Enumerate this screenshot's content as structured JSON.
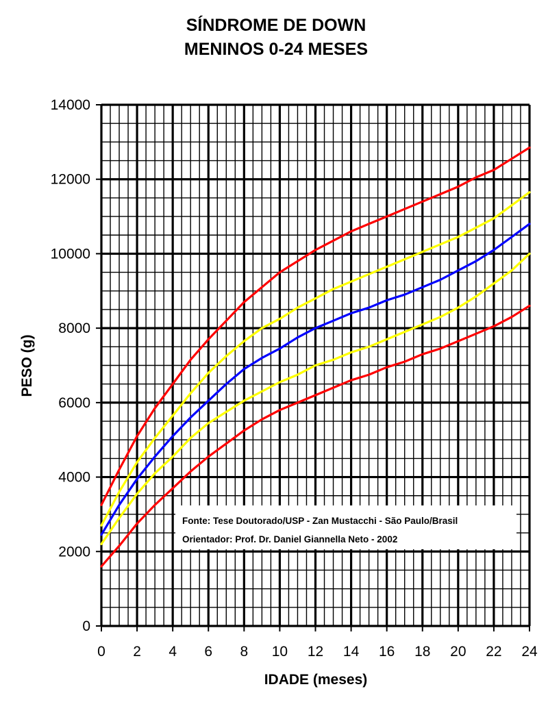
{
  "chart_data": {
    "type": "line",
    "title": "SÍNDROME DE DOWN",
    "subtitle": "MENINOS 0-24 MESES",
    "xlabel": "IDADE (meses)",
    "ylabel": "PESO (g)",
    "xlim": [
      0,
      24
    ],
    "ylim": [
      0,
      14000
    ],
    "x_ticks": [
      "0",
      "2",
      "4",
      "6",
      "8",
      "10",
      "12",
      "14",
      "16",
      "18",
      "20",
      "22",
      "24"
    ],
    "y_ticks": [
      "0",
      "2000",
      "4000",
      "6000",
      "8000",
      "10000",
      "12000",
      "14000"
    ],
    "grid": true,
    "x": [
      0,
      1,
      2,
      3,
      4,
      5,
      6,
      7,
      8,
      9,
      10,
      11,
      12,
      13,
      14,
      15,
      16,
      17,
      18,
      19,
      20,
      21,
      22,
      23,
      24
    ],
    "series": [
      {
        "color": "#ff0000",
        "values": [
          3250,
          4200,
          5100,
          5850,
          6500,
          7150,
          7700,
          8200,
          8700,
          9100,
          9500,
          9800,
          10100,
          10350,
          10600,
          10800,
          11000,
          11200,
          11400,
          11600,
          11800,
          12050,
          12250,
          12550,
          12850
        ]
      },
      {
        "color": "#ffff00",
        "values": [
          2700,
          3600,
          4400,
          5050,
          5650,
          6250,
          6800,
          7250,
          7650,
          8000,
          8250,
          8550,
          8800,
          9050,
          9250,
          9450,
          9650,
          9850,
          10050,
          10250,
          10450,
          10700,
          10950,
          11300,
          11650
        ]
      },
      {
        "color": "#0000ff",
        "values": [
          2450,
          3250,
          3950,
          4550,
          5100,
          5600,
          6050,
          6500,
          6900,
          7200,
          7450,
          7750,
          8000,
          8200,
          8400,
          8550,
          8750,
          8900,
          9100,
          9300,
          9550,
          9800,
          10100,
          10450,
          10800
        ]
      },
      {
        "color": "#ffff00",
        "values": [
          2200,
          2900,
          3550,
          4100,
          4550,
          5050,
          5450,
          5750,
          6050,
          6300,
          6550,
          6750,
          7000,
          7150,
          7350,
          7500,
          7700,
          7900,
          8100,
          8300,
          8550,
          8850,
          9200,
          9550,
          10000
        ]
      },
      {
        "color": "#ff0000",
        "values": [
          1600,
          2150,
          2750,
          3250,
          3700,
          4150,
          4550,
          4900,
          5250,
          5550,
          5800,
          6000,
          6200,
          6400,
          6600,
          6750,
          6950,
          7100,
          7300,
          7450,
          7650,
          7850,
          8050,
          8300,
          8600
        ]
      }
    ],
    "annotations": [
      "Fonte: Tese Doutorado/USP - Zan Mustacchi - São Paulo/Brasil",
      "Orientador: Prof. Dr. Daniel Giannella Neto - 2002"
    ]
  }
}
